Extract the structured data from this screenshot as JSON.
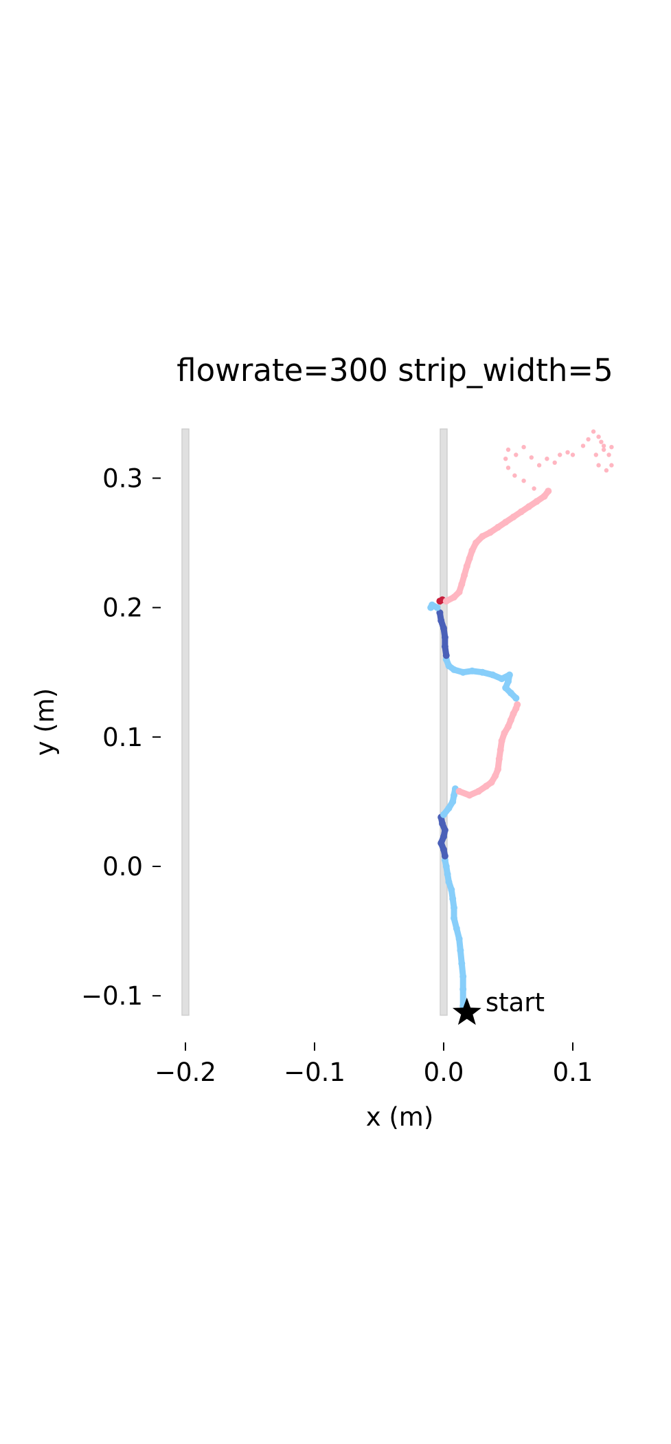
{
  "chart_data": {
    "type": "scatter",
    "title": "flowrate=300 strip_width=5",
    "xlabel": "x (m)",
    "ylabel": "y (m)",
    "xlim": [
      -0.22,
      0.155
    ],
    "ylim": [
      -0.135,
      0.345
    ],
    "xticks": [
      -0.2,
      -0.1,
      0.0,
      0.1
    ],
    "xtick_labels": [
      "−0.2",
      "−0.1",
      "0.0",
      "0.1"
    ],
    "yticks": [
      -0.1,
      0.0,
      0.1,
      0.2,
      0.3
    ],
    "ytick_labels": [
      "−0.1",
      "0.0",
      "0.1",
      "0.2",
      "0.3"
    ],
    "grid": false,
    "strips": [
      {
        "x": -0.2,
        "y_range": [
          -0.115,
          0.338
        ],
        "color": "#e0e0e0"
      },
      {
        "x": 0.0,
        "y_range": [
          -0.115,
          0.338
        ],
        "color": "#e0e0e0"
      }
    ],
    "annotation": {
      "text": "start",
      "x": 0.018,
      "y": -0.113,
      "marker": "star",
      "color": "#000000"
    },
    "colors": {
      "light_blue": "#87cefa",
      "dark_blue": "#4a60b8",
      "pink": "#ffb6c1",
      "red": "#c81e3c"
    },
    "series": [
      {
        "color": "light_blue",
        "points": [
          [
            0.015,
            -0.108
          ],
          [
            0.015,
            -0.095
          ],
          [
            0.015,
            -0.085
          ],
          [
            0.014,
            -0.075
          ],
          [
            0.013,
            -0.065
          ],
          [
            0.012,
            -0.056
          ],
          [
            0.01,
            -0.048
          ],
          [
            0.008,
            -0.04
          ],
          [
            0.008,
            -0.032
          ],
          [
            0.007,
            -0.025
          ],
          [
            0.006,
            -0.018
          ],
          [
            0.004,
            -0.012
          ],
          [
            0.003,
            -0.006
          ],
          [
            0.002,
            0.0
          ],
          [
            0.001,
            0.005
          ]
        ]
      },
      {
        "color": "dark_blue",
        "points": [
          [
            0.001,
            0.008
          ],
          [
            0.0,
            0.013
          ],
          [
            -0.002,
            0.018
          ],
          [
            0.0,
            0.023
          ],
          [
            0.001,
            0.028
          ],
          [
            -0.001,
            0.033
          ],
          [
            -0.002,
            0.038
          ]
        ]
      },
      {
        "color": "light_blue",
        "points": [
          [
            0.0,
            0.04
          ],
          [
            0.004,
            0.045
          ],
          [
            0.007,
            0.05
          ],
          [
            0.008,
            0.055
          ],
          [
            0.009,
            0.06
          ]
        ]
      },
      {
        "color": "pink",
        "points": [
          [
            0.012,
            0.058
          ],
          [
            0.02,
            0.055
          ],
          [
            0.027,
            0.058
          ],
          [
            0.033,
            0.062
          ],
          [
            0.037,
            0.065
          ],
          [
            0.04,
            0.07
          ],
          [
            0.042,
            0.075
          ],
          [
            0.043,
            0.083
          ],
          [
            0.044,
            0.09
          ],
          [
            0.045,
            0.097
          ],
          [
            0.047,
            0.103
          ],
          [
            0.05,
            0.108
          ],
          [
            0.052,
            0.113
          ],
          [
            0.054,
            0.118
          ],
          [
            0.056,
            0.122
          ],
          [
            0.057,
            0.125
          ]
        ]
      },
      {
        "color": "light_blue",
        "points": [
          [
            0.056,
            0.13
          ],
          [
            0.052,
            0.134
          ],
          [
            0.048,
            0.138
          ],
          [
            0.05,
            0.143
          ],
          [
            0.051,
            0.148
          ],
          [
            0.045,
            0.145
          ],
          [
            0.038,
            0.148
          ],
          [
            0.03,
            0.15
          ],
          [
            0.022,
            0.151
          ],
          [
            0.015,
            0.15
          ],
          [
            0.008,
            0.152
          ],
          [
            0.004,
            0.155
          ],
          [
            0.002,
            0.16
          ]
        ]
      },
      {
        "color": "dark_blue",
        "points": [
          [
            0.002,
            0.163
          ],
          [
            0.001,
            0.17
          ],
          [
            0.001,
            0.177
          ],
          [
            0.0,
            0.184
          ],
          [
            -0.002,
            0.19
          ],
          [
            -0.003,
            0.196
          ]
        ]
      },
      {
        "color": "light_blue",
        "points": [
          [
            -0.005,
            0.2
          ],
          [
            -0.009,
            0.202
          ],
          [
            -0.01,
            0.2
          ]
        ]
      },
      {
        "color": "red",
        "points": [
          [
            -0.003,
            0.205
          ],
          [
            -0.001,
            0.206
          ]
        ]
      },
      {
        "color": "pink",
        "points": [
          [
            0.002,
            0.205
          ],
          [
            0.008,
            0.208
          ],
          [
            0.012,
            0.212
          ],
          [
            0.014,
            0.218
          ],
          [
            0.016,
            0.225
          ],
          [
            0.018,
            0.232
          ],
          [
            0.02,
            0.238
          ],
          [
            0.022,
            0.244
          ],
          [
            0.025,
            0.25
          ],
          [
            0.03,
            0.255
          ],
          [
            0.036,
            0.258
          ],
          [
            0.042,
            0.262
          ],
          [
            0.048,
            0.266
          ],
          [
            0.054,
            0.27
          ],
          [
            0.06,
            0.274
          ],
          [
            0.066,
            0.278
          ],
          [
            0.072,
            0.282
          ],
          [
            0.078,
            0.286
          ],
          [
            0.081,
            0.29
          ]
        ]
      },
      {
        "color": "pink",
        "dotted": true,
        "points": [
          [
            0.07,
            0.292
          ],
          [
            0.062,
            0.298
          ],
          [
            0.055,
            0.302
          ],
          [
            0.05,
            0.308
          ],
          [
            0.048,
            0.315
          ],
          [
            0.05,
            0.322
          ],
          [
            0.056,
            0.318
          ],
          [
            0.062,
            0.324
          ],
          [
            0.068,
            0.316
          ],
          [
            0.074,
            0.31
          ],
          [
            0.08,
            0.315
          ],
          [
            0.086,
            0.312
          ],
          [
            0.09,
            0.318
          ],
          [
            0.096,
            0.32
          ],
          [
            0.1,
            0.318
          ],
          [
            0.108,
            0.325
          ],
          [
            0.112,
            0.33
          ],
          [
            0.116,
            0.336
          ],
          [
            0.12,
            0.332
          ],
          [
            0.124,
            0.325
          ],
          [
            0.128,
            0.318
          ],
          [
            0.13,
            0.31
          ],
          [
            0.126,
            0.306
          ],
          [
            0.12,
            0.31
          ],
          [
            0.118,
            0.318
          ],
          [
            0.124,
            0.322
          ],
          [
            0.13,
            0.324
          ],
          [
            0.122,
            0.328
          ]
        ]
      }
    ]
  }
}
